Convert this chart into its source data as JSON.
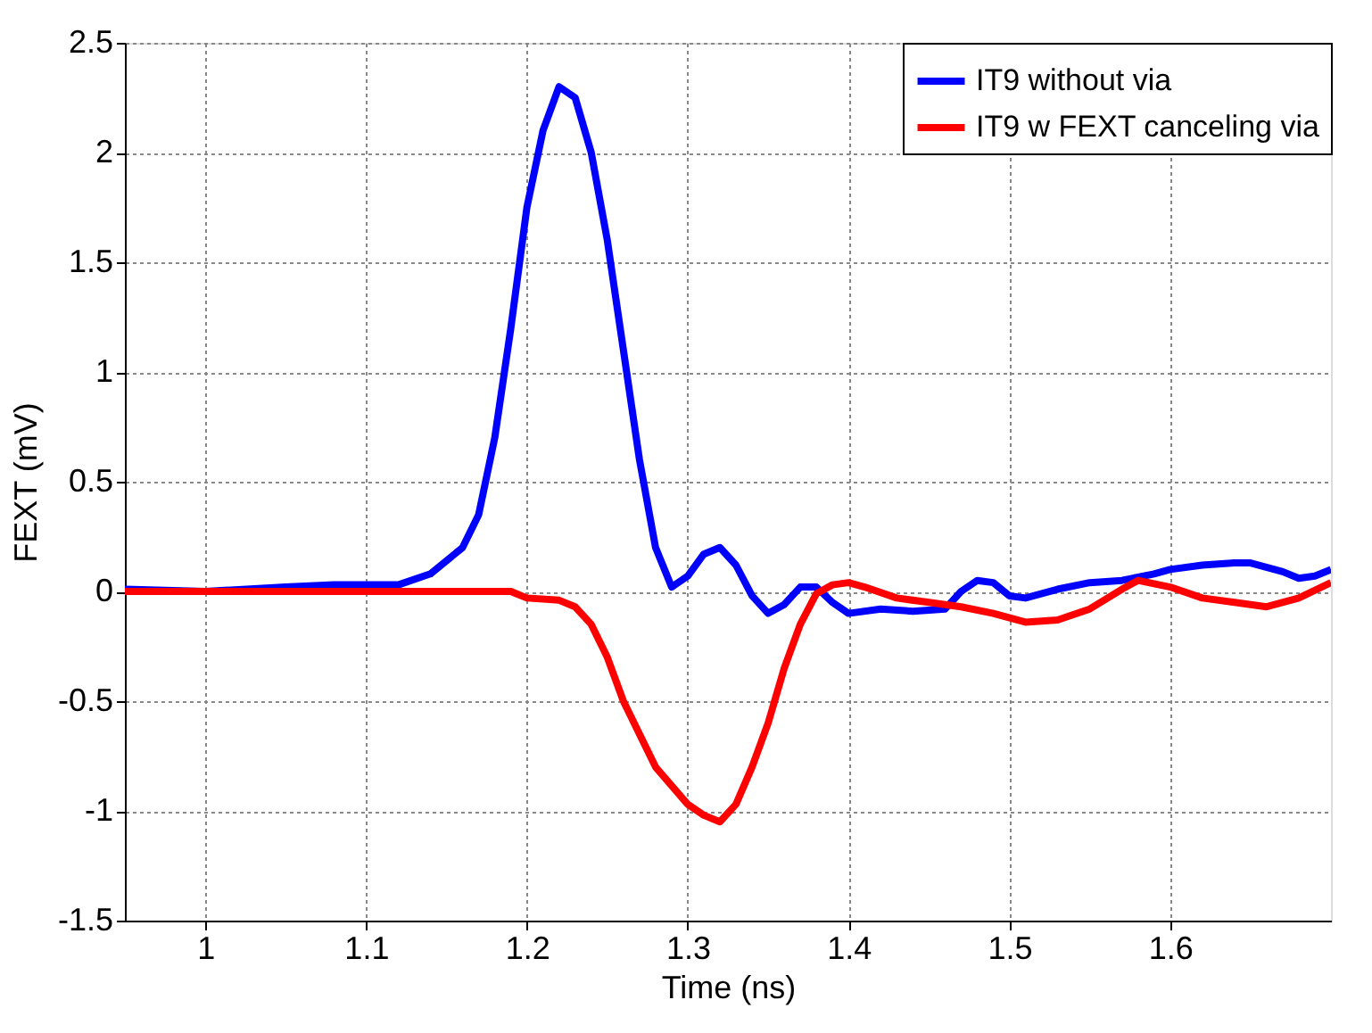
{
  "chart_data": {
    "type": "line",
    "xlabel": "Time (ns)",
    "ylabel": "FEXT (mV)",
    "xlim": [
      0.95,
      1.7
    ],
    "xticks": [
      1,
      1.1,
      1.2,
      1.3,
      1.4,
      1.5,
      1.6
    ],
    "ylim": [
      -1.5,
      2.5
    ],
    "yticks": [
      -1.5,
      -1,
      -0.5,
      0,
      0.5,
      1,
      1.5,
      2,
      2.5
    ],
    "grid": true,
    "legend": "top right",
    "marker": "none",
    "line_style": "solid",
    "series": [
      {
        "name": "IT9 without via",
        "color": "#0000ff",
        "x": [
          0.95,
          1.0,
          1.05,
          1.08,
          1.1,
          1.12,
          1.14,
          1.16,
          1.17,
          1.18,
          1.19,
          1.2,
          1.21,
          1.22,
          1.23,
          1.24,
          1.25,
          1.26,
          1.27,
          1.28,
          1.29,
          1.3,
          1.31,
          1.32,
          1.33,
          1.34,
          1.35,
          1.36,
          1.37,
          1.38,
          1.39,
          1.4,
          1.42,
          1.44,
          1.46,
          1.47,
          1.48,
          1.49,
          1.5,
          1.51,
          1.53,
          1.55,
          1.57,
          1.59,
          1.6,
          1.62,
          1.64,
          1.65,
          1.67,
          1.68,
          1.69,
          1.7
        ],
        "values": [
          0.01,
          0.0,
          0.02,
          0.03,
          0.03,
          0.03,
          0.08,
          0.2,
          0.35,
          0.7,
          1.2,
          1.75,
          2.1,
          2.3,
          2.25,
          2.0,
          1.6,
          1.1,
          0.6,
          0.2,
          0.02,
          0.07,
          0.17,
          0.2,
          0.12,
          -0.02,
          -0.1,
          -0.06,
          0.02,
          0.02,
          -0.05,
          -0.1,
          -0.08,
          -0.09,
          -0.08,
          0.0,
          0.05,
          0.04,
          -0.02,
          -0.03,
          0.01,
          0.04,
          0.05,
          0.08,
          0.1,
          0.12,
          0.13,
          0.13,
          0.09,
          0.06,
          0.07,
          0.1
        ]
      },
      {
        "name": "IT9 w FEXT canceling via",
        "color": "#ff0000",
        "x": [
          0.95,
          1.0,
          1.1,
          1.19,
          1.2,
          1.22,
          1.23,
          1.24,
          1.25,
          1.26,
          1.28,
          1.3,
          1.31,
          1.32,
          1.33,
          1.34,
          1.35,
          1.36,
          1.37,
          1.38,
          1.39,
          1.4,
          1.41,
          1.43,
          1.45,
          1.47,
          1.49,
          1.51,
          1.53,
          1.55,
          1.57,
          1.58,
          1.6,
          1.62,
          1.64,
          1.66,
          1.68,
          1.7
        ],
        "values": [
          0.0,
          0.0,
          0.0,
          0.0,
          -0.03,
          -0.04,
          -0.07,
          -0.15,
          -0.3,
          -0.5,
          -0.8,
          -0.97,
          -1.02,
          -1.05,
          -0.97,
          -0.8,
          -0.6,
          -0.35,
          -0.15,
          -0.01,
          0.03,
          0.04,
          0.02,
          -0.03,
          -0.05,
          -0.07,
          -0.1,
          -0.14,
          -0.13,
          -0.08,
          0.01,
          0.05,
          0.02,
          -0.03,
          -0.05,
          -0.07,
          -0.03,
          0.04
        ]
      }
    ]
  }
}
